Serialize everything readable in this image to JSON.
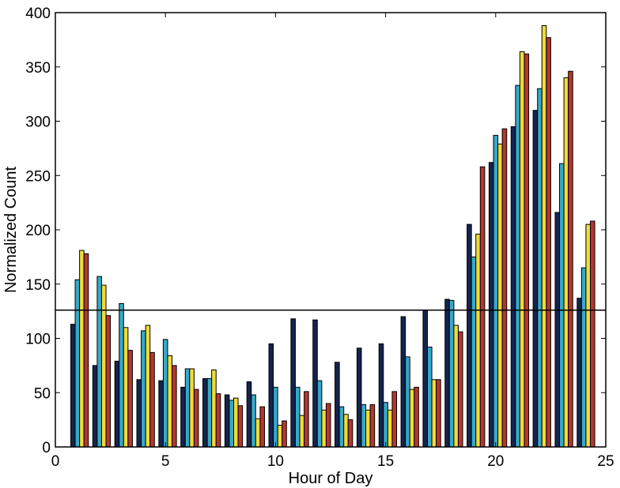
{
  "chart_data": {
    "type": "bar",
    "title": "",
    "xlabel": "Hour of Day",
    "ylabel": "Normalized Count",
    "xlim": [
      0,
      25
    ],
    "ylim": [
      0,
      400
    ],
    "xticks": [
      0,
      5,
      10,
      15,
      20,
      25
    ],
    "yticks": [
      0,
      50,
      100,
      150,
      200,
      250,
      300,
      350,
      400
    ],
    "grid": false,
    "legend": "none",
    "categories": [
      1,
      2,
      3,
      4,
      5,
      6,
      7,
      8,
      9,
      10,
      11,
      12,
      13,
      14,
      15,
      16,
      17,
      18,
      19,
      20,
      21,
      22,
      23,
      24
    ],
    "series": [
      {
        "color": "#14244f",
        "values": [
          113,
          75,
          79,
          62,
          61,
          55,
          63,
          48,
          60,
          95,
          118,
          117,
          78,
          91,
          95,
          120,
          126,
          136,
          205,
          262,
          295,
          310,
          216,
          137
        ]
      },
      {
        "color": "#35a9c9",
        "values": [
          154,
          157,
          132,
          107,
          99,
          72,
          63,
          43,
          48,
          55,
          55,
          61,
          37,
          39,
          41,
          83,
          92,
          135,
          175,
          287,
          333,
          330,
          261,
          165
        ]
      },
      {
        "color": "#eedc3a",
        "values": [
          181,
          149,
          110,
          112,
          84,
          72,
          71,
          45,
          26,
          20,
          29,
          34,
          30,
          34,
          34,
          53,
          62,
          112,
          196,
          279,
          364,
          388,
          340,
          205
        ]
      },
      {
        "color": "#b7362c",
        "values": [
          178,
          121,
          89,
          87,
          75,
          53,
          49,
          38,
          37,
          24,
          51,
          40,
          25,
          39,
          51,
          55,
          62,
          106,
          258,
          293,
          362,
          377,
          346,
          208
        ]
      }
    ],
    "reference_line": {
      "y": 126,
      "color": "#000000"
    }
  }
}
